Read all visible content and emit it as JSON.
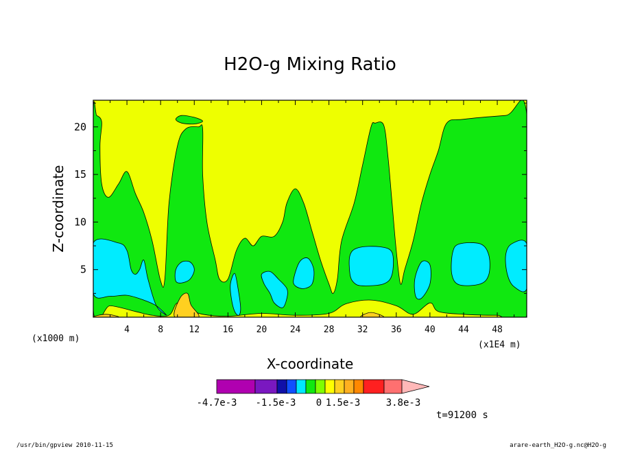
{
  "chart_data": {
    "type": "heatmap",
    "title": "H2O-g Mixing Ratio",
    "xlabel": "X-coordinate",
    "ylabel": "Z-coordinate",
    "x_scale_left": "(x1000 m)",
    "x_scale_right": "(x1E4 m)",
    "xlim": [
      0,
      51.5
    ],
    "ylim": [
      0,
      22.8
    ],
    "x_ticks": [
      4,
      8,
      12,
      16,
      20,
      24,
      28,
      32,
      36,
      40,
      44,
      48
    ],
    "x_tick_labels": [
      "4",
      "8",
      "12",
      "16",
      "20",
      "24",
      "28",
      "32",
      "36",
      "40",
      "44",
      "48"
    ],
    "y_ticks": [
      5,
      10,
      15,
      20
    ],
    "y_tick_labels": [
      "5",
      "10",
      "15",
      "20"
    ],
    "colorbar": {
      "colors": [
        "#b000b0",
        "#7a18c0",
        "#1010a8",
        "#1050ff",
        "#00e8ff",
        "#10e810",
        "#80ff00",
        "#ffff00",
        "#ffd020",
        "#ffb020",
        "#ff8800",
        "#ff2020",
        "#ff7070",
        "#ffb8b8"
      ],
      "labels": [
        "-4.7e-3",
        "-1.5e-3",
        "0",
        "1.5e-3",
        "3.8e-3"
      ],
      "label_positions": [
        -3.5,
        -1.0,
        0,
        1.0,
        3.0
      ]
    },
    "levels": {
      "cyan": "#00ecff",
      "green": "#10e810",
      "yellow": "#eeff00",
      "orange": "#ffd020"
    },
    "regions": {
      "green_main": [
        [
          0,
          0.8
        ],
        [
          2,
          1.2
        ],
        [
          5,
          0.6
        ],
        [
          7,
          0.2
        ],
        [
          9,
          0.2
        ],
        [
          10,
          1.5
        ],
        [
          11.5,
          0.8
        ],
        [
          13,
          0.3
        ],
        [
          16,
          0.1
        ],
        [
          20,
          0.4
        ],
        [
          24,
          0.2
        ],
        [
          28,
          0.4
        ],
        [
          30,
          1.4
        ],
        [
          33,
          1.8
        ],
        [
          36,
          1.2
        ],
        [
          38,
          0.3
        ],
        [
          40,
          1.5
        ],
        [
          41,
          0.6
        ],
        [
          44,
          0.3
        ],
        [
          48,
          0.2
        ],
        [
          51.5,
          0.3
        ],
        [
          51.5,
          21.3
        ],
        [
          49,
          21.2
        ],
        [
          44,
          20.8
        ],
        [
          42,
          20.4
        ],
        [
          41,
          17.5
        ],
        [
          40,
          15
        ],
        [
          39,
          12
        ],
        [
          38,
          8
        ],
        [
          37,
          5
        ],
        [
          36.5,
          3.5
        ],
        [
          36,
          7
        ],
        [
          35.5,
          12
        ],
        [
          35,
          17
        ],
        [
          34.5,
          20.2
        ],
        [
          33.5,
          20.4
        ],
        [
          33,
          20
        ],
        [
          32,
          16
        ],
        [
          31,
          12
        ],
        [
          29.5,
          8
        ],
        [
          29,
          4
        ],
        [
          28.5,
          2.5
        ],
        [
          28,
          3.5
        ],
        [
          27,
          6
        ],
        [
          26,
          9
        ],
        [
          25,
          12
        ],
        [
          24,
          13.5
        ],
        [
          23,
          12
        ],
        [
          22.5,
          10
        ],
        [
          21.5,
          8.5
        ],
        [
          20,
          8.5
        ],
        [
          19,
          7.5
        ],
        [
          18,
          8.3
        ],
        [
          17,
          7
        ],
        [
          16,
          4
        ],
        [
          15,
          4
        ],
        [
          14.5,
          6
        ],
        [
          13.5,
          10
        ],
        [
          13,
          15
        ],
        [
          13,
          19.8
        ],
        [
          12.5,
          20
        ],
        [
          11,
          19.8
        ],
        [
          10,
          18
        ],
        [
          9,
          12
        ],
        [
          8.5,
          4
        ],
        [
          8,
          3.8
        ],
        [
          7,
          8
        ],
        [
          6,
          11
        ],
        [
          5,
          13
        ],
        [
          4,
          15.3
        ],
        [
          3,
          14
        ],
        [
          1.8,
          12.6
        ],
        [
          1,
          14
        ],
        [
          0.8,
          18
        ],
        [
          1,
          20.5
        ],
        [
          0.4,
          21.2
        ],
        [
          0,
          21.1
        ]
      ],
      "green_top": [
        [
          9.8,
          20.8
        ],
        [
          10.5,
          21.2
        ],
        [
          12,
          21
        ],
        [
          13,
          20.6
        ],
        [
          12,
          20.3
        ],
        [
          10.5,
          20.4
        ]
      ],
      "cyan": [
        [
          [
            0,
            2.5
          ],
          [
            2,
            2.2
          ],
          [
            4,
            2.3
          ],
          [
            6,
            1.8
          ],
          [
            7.5,
            1.2
          ],
          [
            8.7,
            0.2
          ],
          [
            7.5,
            1.2
          ],
          [
            6.5,
            4
          ],
          [
            6,
            6
          ],
          [
            5.5,
            5
          ],
          [
            5,
            4.5
          ],
          [
            4.5,
            5
          ],
          [
            4,
            7
          ],
          [
            3,
            7.8
          ],
          [
            0,
            7.8
          ]
        ],
        [
          [
            9.8,
            5
          ],
          [
            10.5,
            5.8
          ],
          [
            11.5,
            5.8
          ],
          [
            12,
            5
          ],
          [
            11.5,
            4
          ],
          [
            10.5,
            3.6
          ],
          [
            9.8,
            3.8
          ]
        ],
        [
          [
            16.3,
            3.5
          ],
          [
            16.8,
            4.6
          ],
          [
            17.2,
            3
          ],
          [
            17.5,
            1
          ],
          [
            17.3,
            0.2
          ],
          [
            16.8,
            0.6
          ],
          [
            16.4,
            2
          ]
        ],
        [
          [
            20,
            4.5
          ],
          [
            21,
            4.8
          ],
          [
            22,
            4
          ],
          [
            23,
            3
          ],
          [
            23,
            2
          ],
          [
            22.5,
            1
          ],
          [
            21.5,
            1.5
          ],
          [
            21,
            2.5
          ],
          [
            20.3,
            3.5
          ]
        ],
        [
          [
            23.8,
            4
          ],
          [
            24.5,
            5.8
          ],
          [
            25.5,
            6.2
          ],
          [
            26.2,
            5
          ],
          [
            26,
            3.5
          ],
          [
            25,
            3
          ],
          [
            24,
            3.3
          ]
        ],
        [
          [
            30.5,
            6.5
          ],
          [
            31.5,
            7.3
          ],
          [
            34,
            7.4
          ],
          [
            35.5,
            6.8
          ],
          [
            35.5,
            4.5
          ],
          [
            34.5,
            3.5
          ],
          [
            32,
            3.3
          ],
          [
            31,
            3.6
          ],
          [
            30.5,
            4.5
          ]
        ],
        [
          [
            38.2,
            4
          ],
          [
            39,
            5.8
          ],
          [
            40,
            5.5
          ],
          [
            40,
            3.5
          ],
          [
            39,
            2
          ],
          [
            38.3,
            2.2
          ]
        ],
        [
          [
            42.7,
            6.8
          ],
          [
            43.5,
            7.7
          ],
          [
            46,
            7.7
          ],
          [
            47,
            6.5
          ],
          [
            47,
            4.5
          ],
          [
            46,
            3.5
          ],
          [
            43.5,
            3.4
          ],
          [
            42.6,
            4.5
          ]
        ],
        [
          [
            49,
            6.5
          ],
          [
            49.7,
            7.7
          ],
          [
            51.5,
            7.7
          ],
          [
            51.5,
            3
          ],
          [
            50,
            3.2
          ],
          [
            49.2,
            4.5
          ]
        ]
      ],
      "orange": [
        [
          [
            9.7,
            0
          ],
          [
            10.3,
            2
          ],
          [
            11.2,
            2.5
          ],
          [
            11.6,
            1.3
          ],
          [
            12.5,
            0
          ]
        ],
        [
          [
            31.8,
            0
          ],
          [
            33,
            0.5
          ],
          [
            34.5,
            0
          ]
        ],
        [
          [
            0,
            0
          ],
          [
            1.5,
            0.3
          ],
          [
            3,
            0
          ]
        ]
      ]
    }
  },
  "footer": {
    "time_label": "t=91200 s",
    "bottom_left": "/usr/bin/gpview  2010-11-15",
    "bottom_right": "arare-earth_H2O-g.nc@H2O-g"
  }
}
